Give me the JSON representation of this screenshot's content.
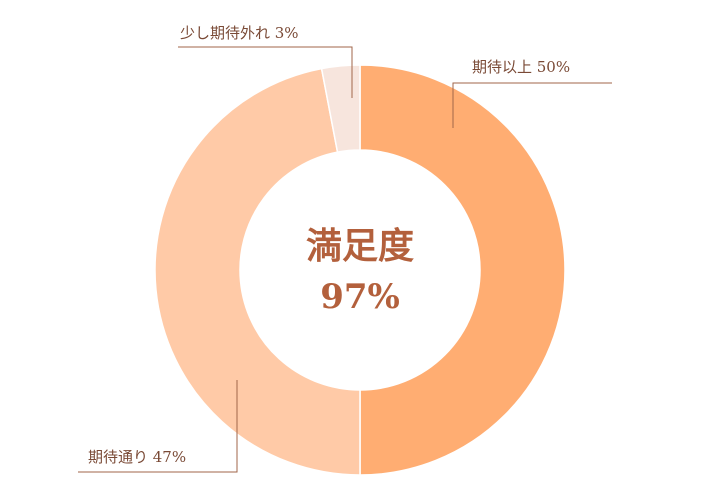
{
  "chart_data": {
    "type": "donut",
    "center_title": "満足度",
    "center_value": "97%",
    "slices": [
      {
        "label": "期待以上  50%",
        "value": 50,
        "color": "#ffad72"
      },
      {
        "label": "期待通り  47%",
        "value": 47,
        "color": "#ffcaa7"
      },
      {
        "label": "少し期待外れ  3%",
        "value": 3,
        "color": "#f7e5dd"
      }
    ],
    "start_angle_deg": 0,
    "direction": "clockwise"
  }
}
